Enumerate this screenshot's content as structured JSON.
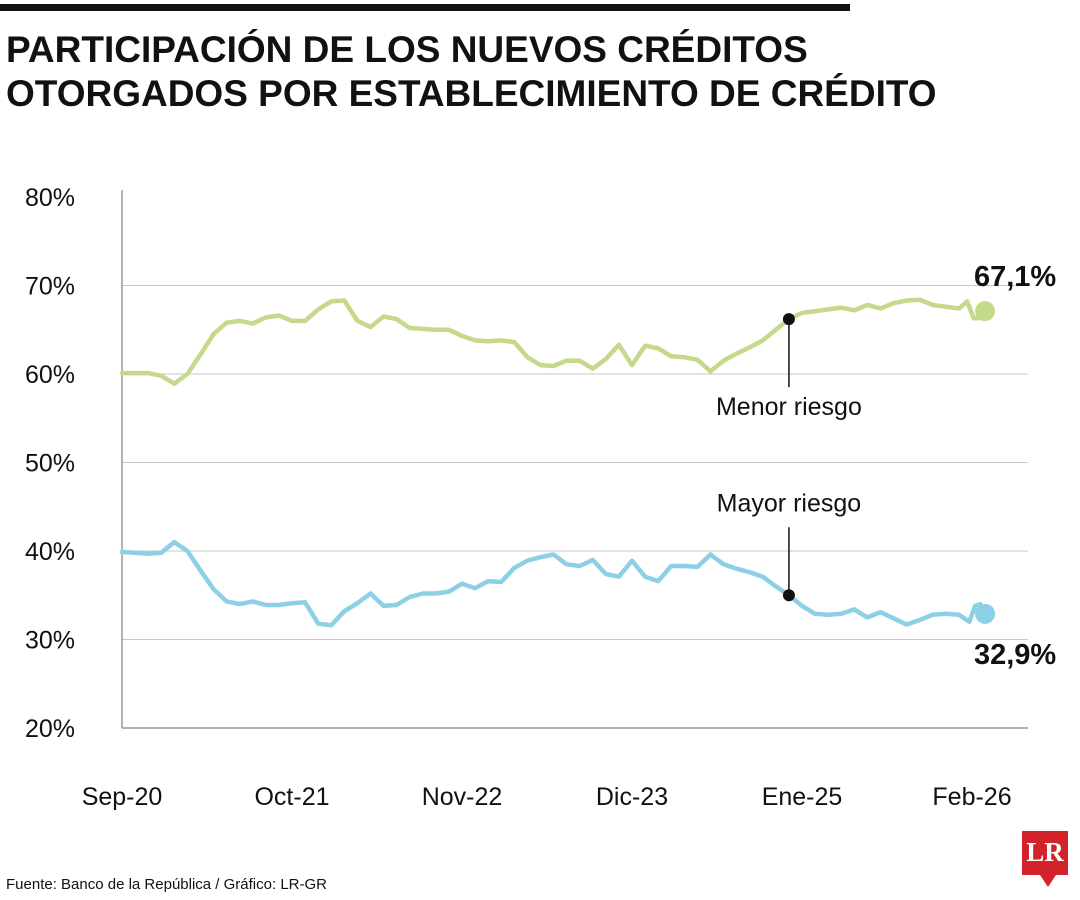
{
  "title": {
    "line1": "PARTICIPACIÓN DE LOS NUEVOS CRÉDITOS",
    "line2": "OTORGADOS POR ESTABLECIMIENTO DE CRÉDITO"
  },
  "source": "Fuente: Banco de la República / Gráfico: LR-GR",
  "logo": {
    "text": "LR",
    "color": "#d2232a"
  },
  "chart_data": {
    "type": "line",
    "title": "PARTICIPACIÓN DE LOS NUEVOS CRÉDITOS OTORGADOS POR ESTABLECIMIENTO DE CRÉDITO",
    "xlabel": "",
    "ylabel": "",
    "ylim": [
      20,
      80
    ],
    "y_ticks": [
      "20%",
      "30%",
      "40%",
      "50%",
      "60%",
      "70%",
      "80%"
    ],
    "x_range": [
      "2020-09",
      "2026-02"
    ],
    "x_ticks": [
      {
        "label": "Sep-20",
        "date": "2020-09"
      },
      {
        "label": "Oct-21",
        "date": "2021-10"
      },
      {
        "label": "Nov-22",
        "date": "2022-11"
      },
      {
        "label": "Dic-23",
        "date": "2023-12"
      },
      {
        "label": "Ene-25",
        "date": "2025-01"
      },
      {
        "label": "Feb-26",
        "date": "2026-02"
      }
    ],
    "grid": true,
    "series": [
      {
        "name": "Menor riesgo",
        "color": "#c5d98a",
        "end_label": "67,1%",
        "annotation_date": "2024-12",
        "points": [
          [
            "2020-09",
            60.1
          ],
          [
            "2020-10",
            60.1
          ],
          [
            "2020-11",
            60.1
          ],
          [
            "2020-12",
            59.8
          ],
          [
            "2021-01",
            58.9
          ],
          [
            "2021-02",
            60.0
          ],
          [
            "2021-03",
            62.2
          ],
          [
            "2021-04",
            64.5
          ],
          [
            "2021-05",
            65.8
          ],
          [
            "2021-06",
            66.0
          ],
          [
            "2021-07",
            65.7
          ],
          [
            "2021-08",
            66.4
          ],
          [
            "2021-09",
            66.6
          ],
          [
            "2021-10",
            66.0
          ],
          [
            "2021-11",
            66.0
          ],
          [
            "2021-12",
            67.3
          ],
          [
            "2022-01",
            68.2
          ],
          [
            "2022-02",
            68.3
          ],
          [
            "2022-03",
            66.0
          ],
          [
            "2022-04",
            65.3
          ],
          [
            "2022-05",
            66.5
          ],
          [
            "2022-06",
            66.2
          ],
          [
            "2022-07",
            65.2
          ],
          [
            "2022-08",
            65.1
          ],
          [
            "2022-09",
            65.0
          ],
          [
            "2022-10",
            65.0
          ],
          [
            "2022-11",
            64.3
          ],
          [
            "2022-12",
            63.8
          ],
          [
            "2023-01",
            63.7
          ],
          [
            "2023-02",
            63.8
          ],
          [
            "2023-03",
            63.6
          ],
          [
            "2023-04",
            61.9
          ],
          [
            "2023-05",
            61.0
          ],
          [
            "2023-06",
            60.9
          ],
          [
            "2023-07",
            61.5
          ],
          [
            "2023-08",
            61.5
          ],
          [
            "2023-09",
            60.6
          ],
          [
            "2023-10",
            61.7
          ],
          [
            "2023-11",
            63.3
          ],
          [
            "2023-12",
            61.0
          ],
          [
            "2024-01",
            63.2
          ],
          [
            "2024-02",
            62.9
          ],
          [
            "2024-03",
            62.0
          ],
          [
            "2024-04",
            61.9
          ],
          [
            "2024-05",
            61.6
          ],
          [
            "2024-06",
            60.3
          ],
          [
            "2024-07",
            61.5
          ],
          [
            "2024-08",
            62.3
          ],
          [
            "2024-09",
            63.0
          ],
          [
            "2024-10",
            63.8
          ],
          [
            "2024-11",
            65.0
          ],
          [
            "2024-12",
            66.2
          ],
          [
            "2025-01",
            66.9
          ],
          [
            "2025-02",
            67.1
          ],
          [
            "2025-03",
            67.3
          ],
          [
            "2025-04",
            67.5
          ],
          [
            "2025-05",
            67.2
          ],
          [
            "2025-06",
            67.8
          ],
          [
            "2025-07",
            67.4
          ],
          [
            "2025-08",
            68.0
          ],
          [
            "2025-09",
            68.3
          ],
          [
            "2025-10",
            68.4
          ],
          [
            "2025-11",
            67.8
          ],
          [
            "2025-12",
            67.6
          ],
          [
            "2026-01",
            67.4
          ],
          [
            "2026-01-20",
            68.2
          ],
          [
            "2026-02-05",
            66.3
          ],
          [
            "2026-02-18",
            66.3
          ],
          [
            "2026-03",
            67.1
          ]
        ]
      },
      {
        "name": "Mayor riesgo",
        "color": "#8dd0e6",
        "end_label": "32,9%",
        "annotation_date": "2024-12",
        "points": [
          [
            "2020-09",
            39.9
          ],
          [
            "2020-10",
            39.8
          ],
          [
            "2020-11",
            39.7
          ],
          [
            "2020-12",
            39.8
          ],
          [
            "2021-01",
            41.0
          ],
          [
            "2021-02",
            40.0
          ],
          [
            "2021-03",
            37.8
          ],
          [
            "2021-04",
            35.7
          ],
          [
            "2021-05",
            34.3
          ],
          [
            "2021-06",
            34.0
          ],
          [
            "2021-07",
            34.3
          ],
          [
            "2021-08",
            33.9
          ],
          [
            "2021-09",
            33.9
          ],
          [
            "2021-10",
            34.1
          ],
          [
            "2021-11",
            34.2
          ],
          [
            "2021-12",
            31.8
          ],
          [
            "2022-01",
            31.6
          ],
          [
            "2022-02",
            33.2
          ],
          [
            "2022-03",
            34.1
          ],
          [
            "2022-04",
            35.2
          ],
          [
            "2022-05",
            33.8
          ],
          [
            "2022-06",
            33.9
          ],
          [
            "2022-07",
            34.8
          ],
          [
            "2022-08",
            35.2
          ],
          [
            "2022-09",
            35.2
          ],
          [
            "2022-10",
            35.4
          ],
          [
            "2022-11",
            36.3
          ],
          [
            "2022-12",
            35.8
          ],
          [
            "2023-01",
            36.6
          ],
          [
            "2023-02",
            36.5
          ],
          [
            "2023-03",
            38.1
          ],
          [
            "2023-04",
            38.9
          ],
          [
            "2023-05",
            39.3
          ],
          [
            "2023-06",
            39.6
          ],
          [
            "2023-07",
            38.5
          ],
          [
            "2023-08",
            38.3
          ],
          [
            "2023-09",
            39.0
          ],
          [
            "2023-10",
            37.4
          ],
          [
            "2023-11",
            37.1
          ],
          [
            "2023-12",
            38.9
          ],
          [
            "2024-01",
            37.1
          ],
          [
            "2024-02",
            36.6
          ],
          [
            "2024-03",
            38.3
          ],
          [
            "2024-04",
            38.3
          ],
          [
            "2024-05",
            38.2
          ],
          [
            "2024-06",
            39.6
          ],
          [
            "2024-07",
            38.5
          ],
          [
            "2024-08",
            38.0
          ],
          [
            "2024-09",
            37.6
          ],
          [
            "2024-10",
            37.1
          ],
          [
            "2024-11",
            36.0
          ],
          [
            "2024-12",
            35.0
          ],
          [
            "2025-01",
            33.8
          ],
          [
            "2025-02",
            32.9
          ],
          [
            "2025-03",
            32.8
          ],
          [
            "2025-04",
            32.9
          ],
          [
            "2025-05",
            33.4
          ],
          [
            "2025-06",
            32.5
          ],
          [
            "2025-07",
            33.1
          ],
          [
            "2025-08",
            32.4
          ],
          [
            "2025-09",
            31.7
          ],
          [
            "2025-10",
            32.2
          ],
          [
            "2025-11",
            32.8
          ],
          [
            "2025-12",
            32.9
          ],
          [
            "2026-01",
            32.8
          ],
          [
            "2026-01-25",
            32.0
          ],
          [
            "2026-02-08",
            33.8
          ],
          [
            "2026-02-20",
            34.0
          ],
          [
            "2026-03",
            32.9
          ]
        ]
      }
    ]
  }
}
